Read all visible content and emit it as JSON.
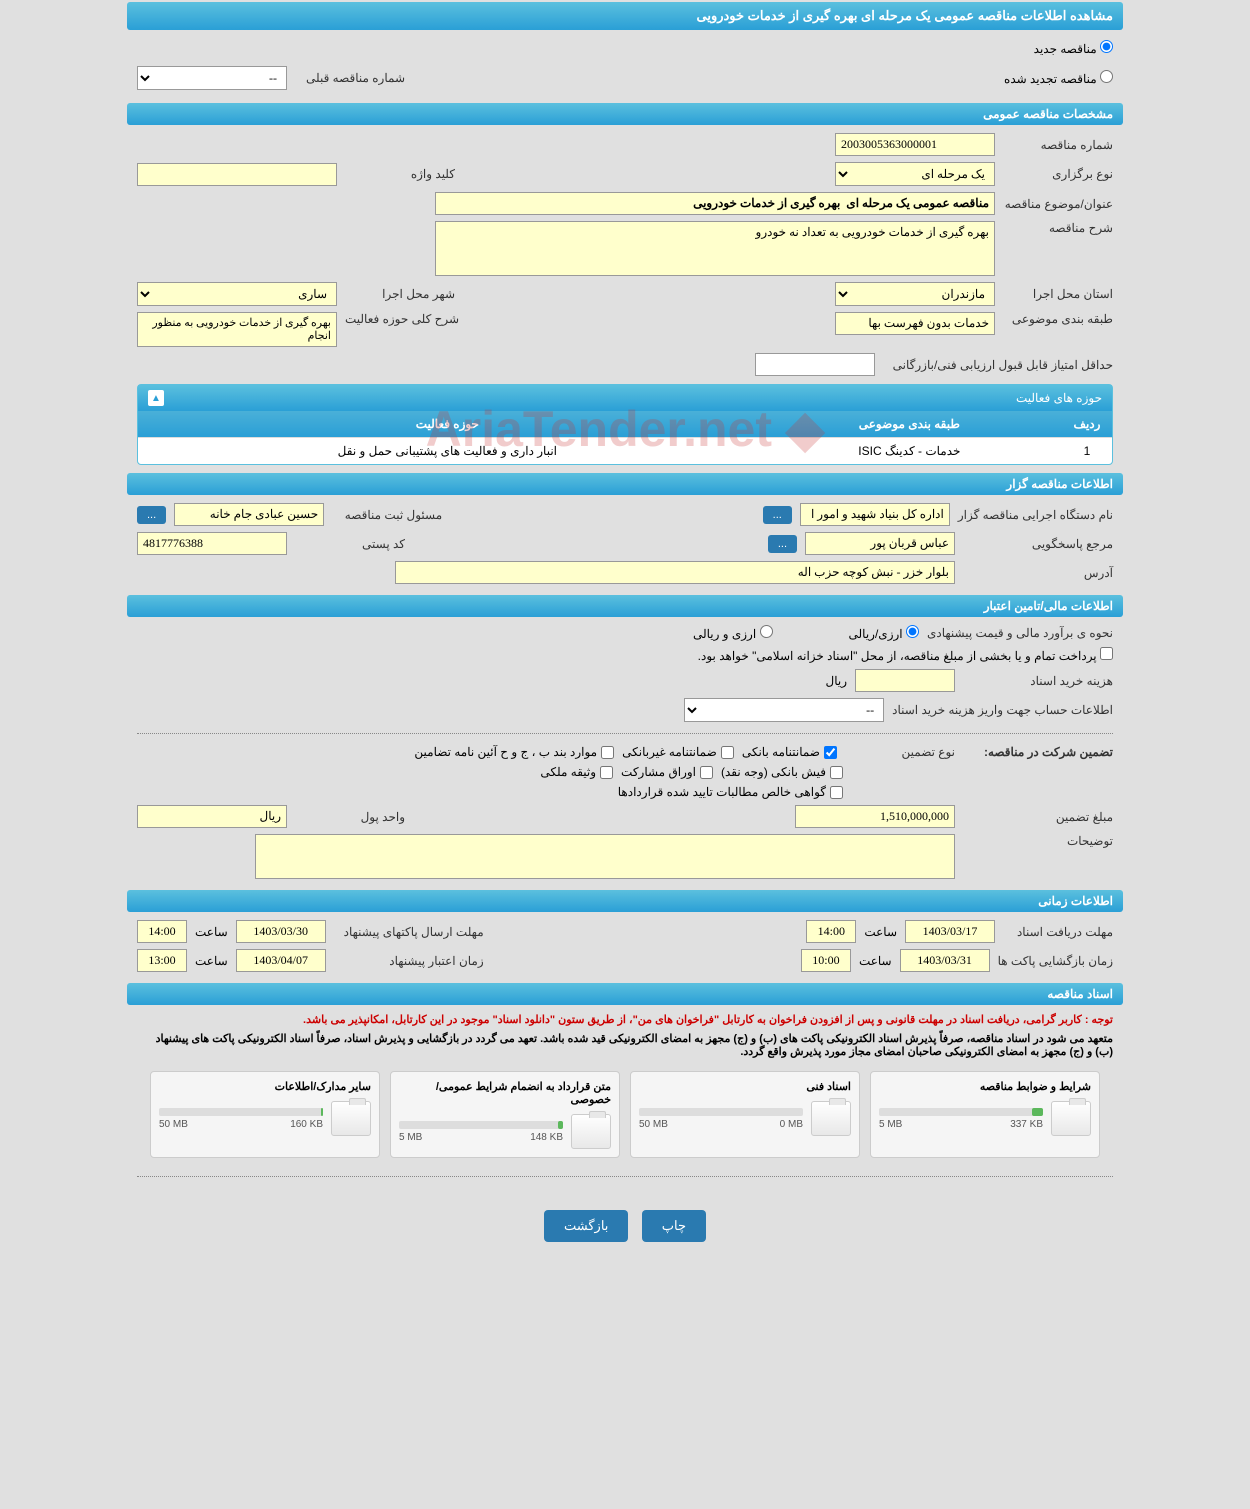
{
  "header": {
    "title": "مشاهده اطلاعات مناقصه عمومی یک مرحله ای بهره گیری از خدمات خودرویی"
  },
  "radio": {
    "new_label": "مناقصه جدید",
    "renewed_label": "مناقصه تجدید شده"
  },
  "prev_number": {
    "label": "شماره مناقصه قبلی",
    "value": "--"
  },
  "sections": {
    "general": "مشخصات مناقصه عمومی",
    "organizer": "اطلاعات مناقصه گزار",
    "financial": "اطلاعات مالی/تامین اعتبار",
    "timing": "اطلاعات زمانی",
    "documents": "اسناد مناقصه"
  },
  "general": {
    "number_label": "شماره مناقصه",
    "number_value": "2003005363000001",
    "holding_type_label": "نوع برگزاری",
    "holding_type_value": "یک مرحله ای",
    "keyword_label": "کلید واژه",
    "keyword_value": "",
    "title_label": "عنوان/موضوع مناقصه",
    "title_value": "مناقصه عمومی یک مرحله ای  بهره گیری از خدمات خودرویی",
    "desc_label": "شرح مناقصه",
    "desc_value": "بهره گیری از خدمات خودرویی به تعداد نه خودرو",
    "province_label": "استان محل اجرا",
    "province_value": "مازندران",
    "city_label": "شهر محل اجرا",
    "city_value": "ساری",
    "category_label": "طبقه بندی موضوعی",
    "category_value": "خدمات بدون فهرست بها",
    "activity_desc_label": "شرح کلی حوزه فعالیت",
    "activity_desc_value": "بهره گیری از خدمات خودرویی به منظور انجام",
    "min_score_label": "حداقل امتیاز قابل قبول ارزیابی فنی/بازرگانی",
    "min_score_value": ""
  },
  "activity_panel": {
    "title": "حوزه های فعالیت",
    "col_row": "ردیف",
    "col_category": "طبقه بندی موضوعی",
    "col_activity": "حوزه فعالیت",
    "rows": [
      {
        "num": "1",
        "category": "خدمات - کدینگ ISIC",
        "activity": "انبار داری و فعالیت های پشتیبانی حمل و نقل"
      }
    ]
  },
  "organizer": {
    "exec_label": "نام دستگاه اجرایی مناقصه گزار",
    "exec_value": "اداره کل بنیاد شهید و امور ا",
    "registrar_label": "مسئول ثبت مناقصه",
    "registrar_value": "حسین عبادی جام خانه",
    "responder_label": "مرجع پاسخگویی",
    "responder_value": "عباس قربان پور",
    "postal_label": "کد پستی",
    "postal_value": "4817776388",
    "address_label": "آدرس",
    "address_value": "بلوار خزر - نبش کوچه حزب اله",
    "dots": "..."
  },
  "financial": {
    "estimate_label": "نحوه ی برآورد مالی و قیمت پیشنهادی",
    "currency_rial": "ارزی/ریالی",
    "currency_foreign": "ارزی و ریالی",
    "payment_note": "پرداخت تمام و یا بخشی از مبلغ مناقصه، از محل \"اسناد خزانه اسلامی\" خواهد بود.",
    "doc_cost_label": "هزینه خرید اسناد",
    "doc_cost_value": "",
    "rial_unit": "ریال",
    "account_label": "اطلاعات حساب جهت واریز هزینه خرید اسناد",
    "account_value": "--",
    "guarantee_label": "تضمین شرکت در مناقصه:",
    "guarantee_type_label": "نوع تضمین",
    "g_bank": "ضمانتنامه بانکی",
    "g_nonbank": "ضمانتنامه غیربانکی",
    "g_regulation": "موارد بند ب ، ج و ح آئین نامه تضامین",
    "g_cash": "فیش بانکی (وجه نقد)",
    "g_participation": "اوراق مشارکت",
    "g_property": "وثیقه ملکی",
    "g_contracts": "گواهی خالص مطالبات تایید شده قراردادها",
    "guarantee_amount_label": "مبلغ تضمین",
    "guarantee_amount_value": "1,510,000,000",
    "currency_unit_label": "واحد پول",
    "currency_unit_value": "ریال",
    "notes_label": "توضیحات",
    "notes_value": ""
  },
  "timing": {
    "receive_deadline_label": "مهلت دریافت اسناد",
    "receive_deadline_date": "1403/03/17",
    "receive_deadline_time": "14:00",
    "submit_deadline_label": "مهلت ارسال پاکتهای پیشنهاد",
    "submit_deadline_date": "1403/03/30",
    "submit_deadline_time": "14:00",
    "opening_label": "زمان بازگشایی پاکت ها",
    "opening_date": "1403/03/31",
    "opening_time": "10:00",
    "validity_label": "زمان اعتبار پیشنهاد",
    "validity_date": "1403/04/07",
    "validity_time": "13:00",
    "time_label": "ساعت"
  },
  "documents": {
    "note1": "توجه : کاربر گرامی، دریافت اسناد در مهلت قانونی و پس از افزودن فراخوان به کارتابل \"فراخوان های من\"، از طریق ستون \"دانلود اسناد\" موجود در این کارتابل، امکانپذیر می باشد.",
    "note2": "متعهد می شود در اسناد مناقصه، صرفاً پذیرش اسناد الکترونیکی پاکت های (ب) و (ج) مجهز به امضای الکترونیکی قید شده باشد. تعهد می گردد در بازگشایی و پذیرش اسناد، صرفاً اسناد الکترونیکی پاکت های پیشنهاد (ب) و (ج) مجهز به امضای الکترونیکی صاحبان امضای مجاز مورد پذیرش واقع گردد.",
    "cards": [
      {
        "title": "شرایط و ضوابط مناقصه",
        "used": "337 KB",
        "total": "5 MB",
        "percent": 7
      },
      {
        "title": "اسناد فنی",
        "used": "0 MB",
        "total": "50 MB",
        "percent": 0
      },
      {
        "title": "متن قرارداد به انضمام شرایط عمومی/خصوصی",
        "used": "148 KB",
        "total": "5 MB",
        "percent": 3
      },
      {
        "title": "سایر مدارک/اطلاعات",
        "used": "160 KB",
        "total": "50 MB",
        "percent": 1
      }
    ]
  },
  "watermark": "AriaTender.net",
  "footer": {
    "print": "چاپ",
    "back": "بازگشت"
  }
}
